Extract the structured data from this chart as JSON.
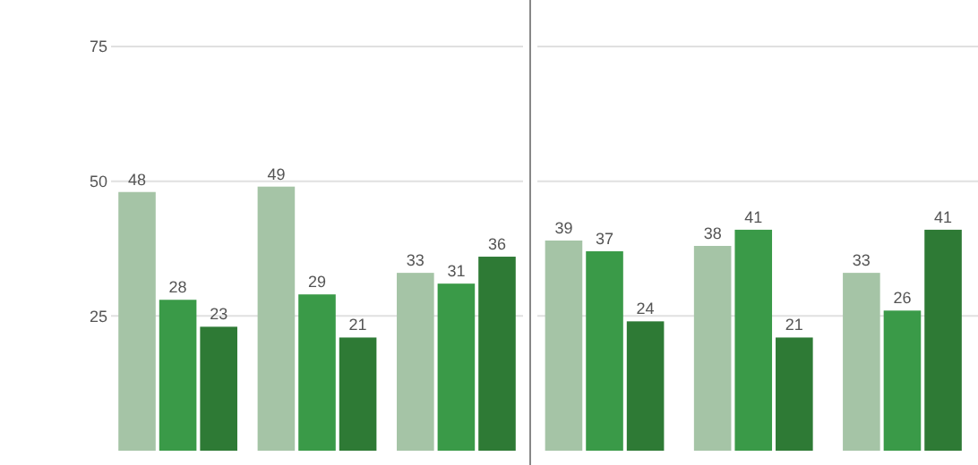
{
  "chart_data": {
    "type": "bar",
    "categories": [
      null,
      null,
      null,
      null,
      null,
      null
    ],
    "ylim": [
      0,
      75
    ],
    "yticks": [
      25,
      50,
      75
    ],
    "grid": "y",
    "data_labels": true,
    "series": [
      {
        "color": "#a5c4a6",
        "values": [
          48,
          49,
          33,
          39,
          38,
          33
        ]
      },
      {
        "color": "#3a9a48",
        "values": [
          28,
          29,
          31,
          37,
          41,
          26
        ]
      },
      {
        "color": "#2e7a35",
        "values": [
          23,
          21,
          36,
          24,
          21,
          41
        ]
      }
    ]
  }
}
